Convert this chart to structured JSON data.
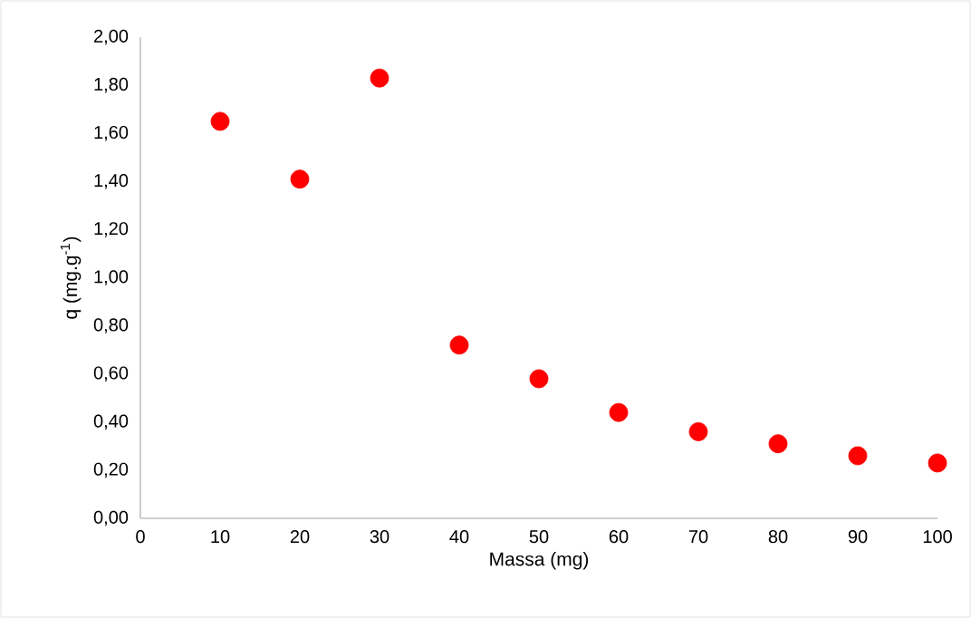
{
  "chart_data": {
    "type": "scatter",
    "xlabel": "Massa (mg)",
    "ylabel": "q (mg.g$^{-1}$)",
    "x": [
      10,
      20,
      30,
      40,
      50,
      60,
      70,
      80,
      90,
      100
    ],
    "series": [
      {
        "color": "#ff0000",
        "values": [
          1.65,
          1.41,
          1.83,
          0.72,
          0.58,
          0.44,
          0.36,
          0.31,
          0.26,
          0.23
        ]
      }
    ],
    "xlim": [
      0,
      100
    ],
    "xticks": [
      0,
      10,
      20,
      30,
      40,
      50,
      60,
      70,
      80,
      90,
      100
    ],
    "ylim": [
      0,
      2
    ],
    "yticks": [
      {
        "value": 0,
        "label": "0,00"
      },
      {
        "value": 0.2,
        "label": "0,20"
      },
      {
        "value": 0.4,
        "label": "0,40"
      },
      {
        "value": 0.6,
        "label": "0,60"
      },
      {
        "value": 0.8,
        "label": "0,80"
      },
      {
        "value": 1.0,
        "label": "1,00"
      },
      {
        "value": 1.2,
        "label": "1,20"
      },
      {
        "value": 1.4,
        "label": "1,40"
      },
      {
        "value": 1.6,
        "label": "1,60"
      },
      {
        "value": 1.8,
        "label": "1,80"
      },
      {
        "value": 2.0,
        "label": "2,00"
      }
    ],
    "grid": false,
    "marker": "circle"
  }
}
